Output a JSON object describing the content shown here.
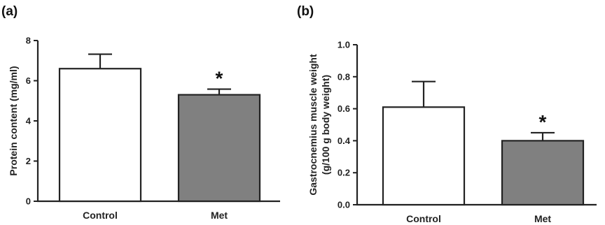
{
  "chart_data": [
    {
      "type": "bar",
      "panel_label": "(a)",
      "categories": [
        "Control",
        "Met"
      ],
      "values": [
        6.6,
        5.3
      ],
      "errors": [
        0.72,
        0.28
      ],
      "significance": [
        "",
        "*"
      ],
      "bar_colors": [
        "#ffffff",
        "#808080"
      ],
      "ylabel": "Protein content (mg/ml)",
      "ylabel_lines": [
        "Protein content (mg/ml)"
      ],
      "ylim": [
        0,
        8
      ],
      "yticks": [
        "0",
        "2",
        "4",
        "6",
        "8"
      ],
      "ytick_values": [
        0,
        2,
        4,
        6,
        8
      ],
      "grid": false
    },
    {
      "type": "bar",
      "panel_label": "(b)",
      "categories": [
        "Control",
        "Met"
      ],
      "values": [
        0.61,
        0.4
      ],
      "errors": [
        0.16,
        0.05
      ],
      "significance": [
        "",
        "*"
      ],
      "bar_colors": [
        "#ffffff",
        "#808080"
      ],
      "ylabel": "Gastrocnemius muscle weight (g/100 g body weight)",
      "ylabel_lines": [
        "Gastrocnemius muscle weight",
        "(g/100 g body weight)"
      ],
      "ylim": [
        0,
        1.0
      ],
      "yticks": [
        "0.0",
        "0.2",
        "0.4",
        "0.6",
        "0.8",
        "1.0"
      ],
      "ytick_values": [
        0,
        0.2,
        0.4,
        0.6,
        0.8,
        1.0
      ],
      "grid": false
    }
  ]
}
